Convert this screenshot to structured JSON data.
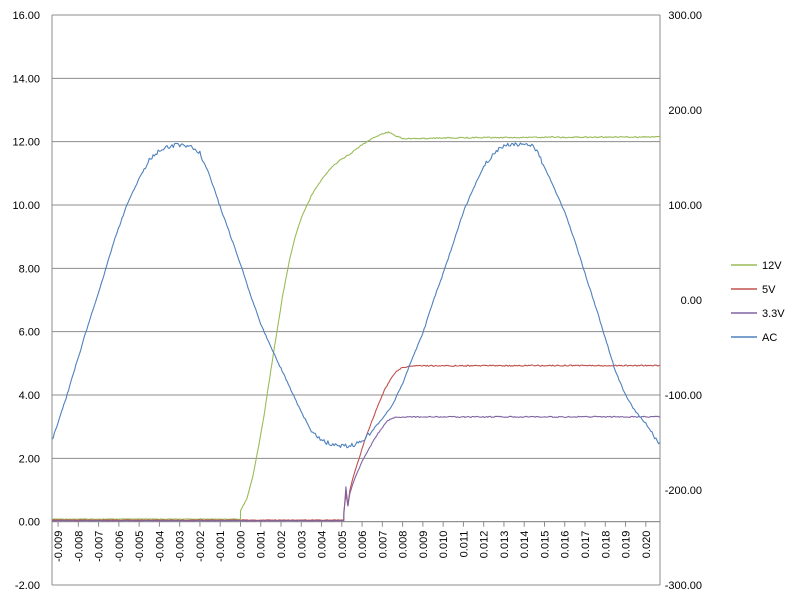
{
  "chart_data": {
    "type": "line",
    "title": "",
    "xlabel": "",
    "ylabel": "",
    "y2label": "",
    "x": [
      -0.009,
      -0.008,
      -0.007,
      -0.006,
      -0.005,
      -0.004,
      -0.003,
      -0.002,
      -0.001,
      0.0,
      0.001,
      0.002,
      0.003,
      0.004,
      0.005,
      0.006,
      0.007,
      0.008,
      0.009,
      0.01,
      0.011,
      0.012,
      0.013,
      0.014,
      0.015,
      0.016,
      0.017,
      0.018,
      0.019,
      0.02
    ],
    "x_tick_labels": [
      "-0.009",
      "-0.008",
      "-0.007",
      "-0.006",
      "-0.005",
      "-0.004",
      "-0.003",
      "-0.002",
      "-0.001",
      "0.000",
      "0.001",
      "0.002",
      "0.003",
      "0.004",
      "0.005",
      "0.006",
      "0.007",
      "0.008",
      "0.009",
      "0.010",
      "0.011",
      "0.012",
      "0.013",
      "0.014",
      "0.015",
      "0.016",
      "0.017",
      "0.018",
      "0.019",
      "0.020"
    ],
    "xlim": [
      -0.0093,
      0.0207
    ],
    "ylim": [
      -2,
      16
    ],
    "y_tick_labels": [
      "-2.00",
      "0.00",
      "2.00",
      "4.00",
      "6.00",
      "8.00",
      "10.00",
      "12.00",
      "14.00",
      "16.00"
    ],
    "y2lim": [
      -300,
      300
    ],
    "y2_tick_labels": [
      "-300.00",
      "-200.00",
      "-100.00",
      "0.00",
      "100.00",
      "200.00",
      "300.00"
    ],
    "grid": "horizontal",
    "legend_position": "right",
    "series": [
      {
        "name": "12V",
        "axis": "left",
        "color": "#9BBB59",
        "points": [
          [
            -0.0093,
            0.08
          ],
          [
            0.0,
            0.08
          ],
          [
            0.0,
            0.35
          ],
          [
            0.0003,
            0.7
          ],
          [
            0.0006,
            1.4
          ],
          [
            0.0009,
            2.4
          ],
          [
            0.0012,
            3.5
          ],
          [
            0.0015,
            4.8
          ],
          [
            0.0018,
            6.0
          ],
          [
            0.0021,
            7.2
          ],
          [
            0.0024,
            8.2
          ],
          [
            0.0027,
            9.0
          ],
          [
            0.003,
            9.6
          ],
          [
            0.0035,
            10.3
          ],
          [
            0.004,
            10.8
          ],
          [
            0.0045,
            11.2
          ],
          [
            0.005,
            11.45
          ],
          [
            0.0055,
            11.65
          ],
          [
            0.006,
            11.9
          ],
          [
            0.0065,
            12.1
          ],
          [
            0.007,
            12.25
          ],
          [
            0.0073,
            12.3
          ],
          [
            0.0076,
            12.2
          ],
          [
            0.008,
            12.1
          ],
          [
            0.009,
            12.1
          ],
          [
            0.01,
            12.12
          ],
          [
            0.012,
            12.13
          ],
          [
            0.014,
            12.13
          ],
          [
            0.015,
            12.14
          ],
          [
            0.017,
            12.14
          ],
          [
            0.0207,
            12.15
          ]
        ]
      },
      {
        "name": "5V",
        "axis": "left",
        "color": "#C0504D",
        "points": [
          [
            -0.0093,
            0.05
          ],
          [
            0.0051,
            0.05
          ],
          [
            0.0051,
            0.3
          ],
          [
            0.0052,
            0.9
          ],
          [
            0.0053,
            0.5
          ],
          [
            0.0054,
            1.0
          ],
          [
            0.0056,
            1.5
          ],
          [
            0.0058,
            1.9
          ],
          [
            0.006,
            2.3
          ],
          [
            0.0062,
            2.7
          ],
          [
            0.0065,
            3.2
          ],
          [
            0.0068,
            3.7
          ],
          [
            0.0071,
            4.15
          ],
          [
            0.0074,
            4.5
          ],
          [
            0.0077,
            4.75
          ],
          [
            0.008,
            4.87
          ],
          [
            0.0085,
            4.92
          ],
          [
            0.01,
            4.92
          ],
          [
            0.015,
            4.93
          ],
          [
            0.0207,
            4.93
          ]
        ]
      },
      {
        "name": "3.3V",
        "axis": "left",
        "color": "#8064A2",
        "points": [
          [
            -0.0093,
            0.03
          ],
          [
            0.0051,
            0.03
          ],
          [
            0.0051,
            0.2
          ],
          [
            0.0052,
            1.1
          ],
          [
            0.0053,
            0.5
          ],
          [
            0.0054,
            0.9
          ],
          [
            0.0056,
            1.3
          ],
          [
            0.0058,
            1.6
          ],
          [
            0.006,
            1.9
          ],
          [
            0.0063,
            2.25
          ],
          [
            0.0066,
            2.6
          ],
          [
            0.0069,
            2.9
          ],
          [
            0.0072,
            3.15
          ],
          [
            0.0075,
            3.28
          ],
          [
            0.008,
            3.3
          ],
          [
            0.01,
            3.31
          ],
          [
            0.015,
            3.31
          ],
          [
            0.0207,
            3.31
          ]
        ]
      },
      {
        "name": "AC",
        "axis": "right",
        "color": "#4F81BD",
        "points": [
          [
            -0.0093,
            -148
          ],
          [
            -0.0086,
            -103
          ],
          [
            -0.008,
            -60
          ],
          [
            -0.0074,
            -18
          ],
          [
            -0.0068,
            22
          ],
          [
            -0.0062,
            65
          ],
          [
            -0.0056,
            100
          ],
          [
            -0.005,
            128
          ],
          [
            -0.0045,
            148
          ],
          [
            -0.004,
            158
          ],
          [
            -0.0035,
            162
          ],
          [
            -0.003,
            163
          ],
          [
            -0.0025,
            163
          ],
          [
            -0.002,
            155
          ],
          [
            -0.0015,
            130
          ],
          [
            -0.001,
            98
          ],
          [
            -0.0005,
            68
          ],
          [
            0.0,
            38
          ],
          [
            0.0005,
            5
          ],
          [
            0.001,
            -25
          ],
          [
            0.0015,
            -50
          ],
          [
            0.002,
            -72
          ],
          [
            0.0025,
            -95
          ],
          [
            0.003,
            -118
          ],
          [
            0.0035,
            -138
          ],
          [
            0.004,
            -148
          ],
          [
            0.0045,
            -152
          ],
          [
            0.005,
            -154
          ],
          [
            0.0055,
            -153
          ],
          [
            0.006,
            -148
          ],
          [
            0.0065,
            -138
          ],
          [
            0.007,
            -125
          ],
          [
            0.0075,
            -110
          ],
          [
            0.008,
            -88
          ],
          [
            0.0085,
            -60
          ],
          [
            0.009,
            -35
          ],
          [
            0.0095,
            -2
          ],
          [
            0.01,
            28
          ],
          [
            0.0105,
            60
          ],
          [
            0.011,
            93
          ],
          [
            0.0115,
            118
          ],
          [
            0.012,
            140
          ],
          [
            0.0125,
            155
          ],
          [
            0.013,
            162
          ],
          [
            0.0135,
            164
          ],
          [
            0.014,
            164
          ],
          [
            0.0145,
            162
          ],
          [
            0.015,
            140
          ],
          [
            0.0155,
            117
          ],
          [
            0.016,
            93
          ],
          [
            0.0165,
            62
          ],
          [
            0.017,
            28
          ],
          [
            0.0175,
            -5
          ],
          [
            0.018,
            -40
          ],
          [
            0.0185,
            -75
          ],
          [
            0.019,
            -100
          ],
          [
            0.0195,
            -118
          ],
          [
            0.02,
            -130
          ],
          [
            0.0205,
            -147
          ],
          [
            0.0207,
            -150
          ]
        ]
      }
    ]
  }
}
